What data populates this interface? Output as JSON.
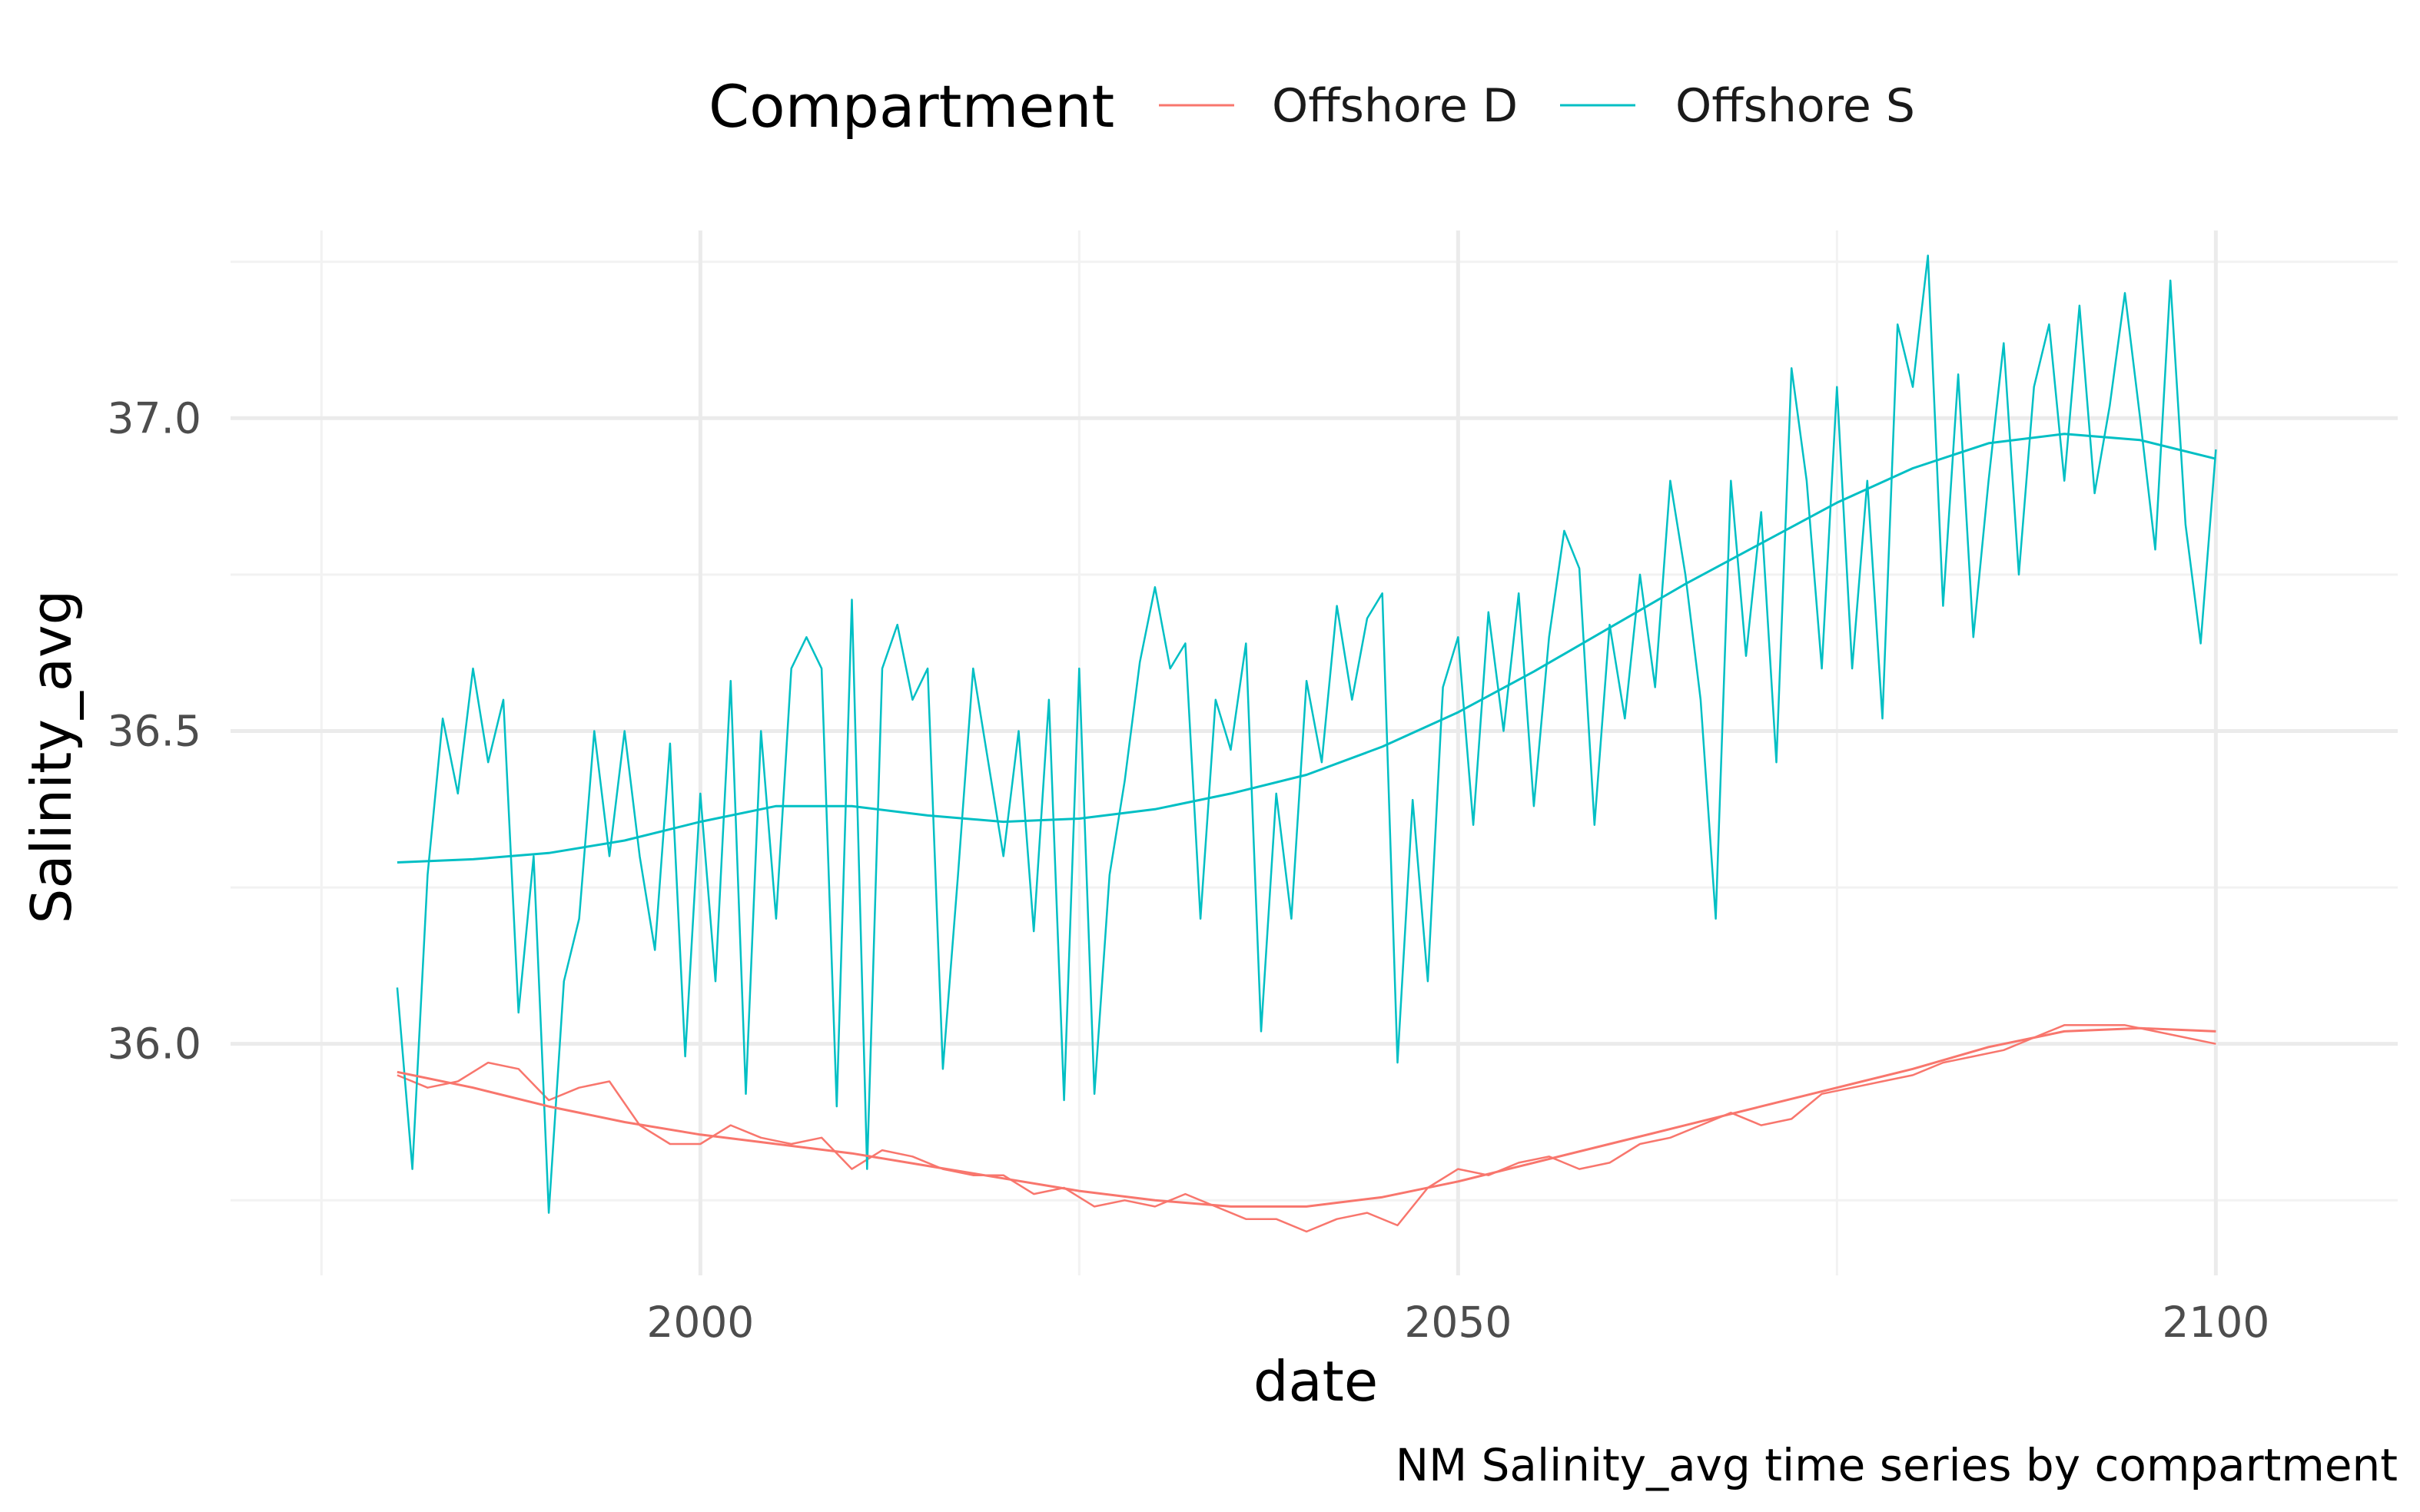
{
  "chart_data": {
    "type": "line",
    "xlabel": "date",
    "ylabel": "Salinity_avg",
    "caption": "NM Salinity_avg time series by compartment",
    "legend": {
      "title": "Compartment",
      "placement": "top"
    },
    "xlim": [
      1969,
      2112
    ],
    "ylim": [
      35.63,
      37.3
    ],
    "x_ticks": [
      2000,
      2050,
      2100
    ],
    "x_tick_labels": [
      "2000",
      "2050",
      "2100"
    ],
    "y_ticks": [
      36.0,
      36.5,
      37.0
    ],
    "y_tick_labels": [
      "36.0",
      "36.5",
      "37.0"
    ],
    "grid": true,
    "colors": {
      "Offshore D": "#F8766D",
      "Offshore S": "#00BFC4"
    },
    "series": [
      {
        "name": "Offshore D",
        "kind": "observed",
        "x": [
          1980,
          1982,
          1984,
          1986,
          1988,
          1990,
          1992,
          1994,
          1996,
          1998,
          2000,
          2002,
          2004,
          2006,
          2008,
          2010,
          2012,
          2014,
          2016,
          2018,
          2020,
          2022,
          2024,
          2026,
          2028,
          2030,
          2032,
          2034,
          2036,
          2038,
          2040,
          2042,
          2044,
          2046,
          2048,
          2050,
          2052,
          2054,
          2056,
          2058,
          2060,
          2062,
          2064,
          2066,
          2068,
          2070,
          2072,
          2074,
          2076,
          2078,
          2080,
          2082,
          2084,
          2086,
          2088,
          2090,
          2092,
          2094,
          2096,
          2098,
          2100
        ],
        "y": [
          35.95,
          35.93,
          35.94,
          35.97,
          35.96,
          35.91,
          35.93,
          35.94,
          35.87,
          35.84,
          35.84,
          35.87,
          35.85,
          35.84,
          35.85,
          35.8,
          35.83,
          35.82,
          35.8,
          35.79,
          35.79,
          35.76,
          35.77,
          35.74,
          35.75,
          35.74,
          35.76,
          35.74,
          35.72,
          35.72,
          35.7,
          35.72,
          35.73,
          35.71,
          35.77,
          35.8,
          35.79,
          35.81,
          35.82,
          35.8,
          35.81,
          35.84,
          35.85,
          35.87,
          35.89,
          35.87,
          35.88,
          35.92,
          35.93,
          35.94,
          35.95,
          35.97,
          35.98,
          35.99,
          36.01,
          36.03,
          36.03,
          36.03,
          36.02,
          36.01,
          36.0
        ]
      },
      {
        "name": "Offshore S",
        "kind": "observed",
        "x": [
          1980,
          1981,
          1982,
          1983,
          1984,
          1985,
          1986,
          1987,
          1988,
          1989,
          1990,
          1991,
          1992,
          1993,
          1994,
          1995,
          1996,
          1997,
          1998,
          1999,
          2000,
          2001,
          2002,
          2003,
          2004,
          2005,
          2006,
          2007,
          2008,
          2009,
          2010,
          2011,
          2012,
          2013,
          2014,
          2015,
          2016,
          2017,
          2018,
          2019,
          2020,
          2021,
          2022,
          2023,
          2024,
          2025,
          2026,
          2027,
          2028,
          2029,
          2030,
          2031,
          2032,
          2033,
          2034,
          2035,
          2036,
          2037,
          2038,
          2039,
          2040,
          2041,
          2042,
          2043,
          2044,
          2045,
          2046,
          2047,
          2048,
          2049,
          2050,
          2051,
          2052,
          2053,
          2054,
          2055,
          2056,
          2057,
          2058,
          2059,
          2060,
          2061,
          2062,
          2063,
          2064,
          2065,
          2066,
          2067,
          2068,
          2069,
          2070,
          2071,
          2072,
          2073,
          2074,
          2075,
          2076,
          2077,
          2078,
          2079,
          2080,
          2081,
          2082,
          2083,
          2084,
          2085,
          2086,
          2087,
          2088,
          2089,
          2090,
          2091,
          2092,
          2093,
          2094,
          2095,
          2096,
          2097,
          2098,
          2099,
          2100
        ],
        "y": [
          36.09,
          35.8,
          36.27,
          36.52,
          36.4,
          36.6,
          36.45,
          36.55,
          36.05,
          36.3,
          35.73,
          36.1,
          36.2,
          36.5,
          36.3,
          36.5,
          36.3,
          36.15,
          36.48,
          35.98,
          36.4,
          36.1,
          36.58,
          35.92,
          36.5,
          36.2,
          36.6,
          36.65,
          36.6,
          35.9,
          36.71,
          35.8,
          36.6,
          36.67,
          36.55,
          36.6,
          35.96,
          36.27,
          36.6,
          36.45,
          36.3,
          36.5,
          36.18,
          36.55,
          35.91,
          36.6,
          35.92,
          36.27,
          36.42,
          36.61,
          36.73,
          36.6,
          36.64,
          36.2,
          36.55,
          36.47,
          36.64,
          36.02,
          36.4,
          36.2,
          36.58,
          36.45,
          36.7,
          36.55,
          36.68,
          36.72,
          35.97,
          36.39,
          36.1,
          36.57,
          36.65,
          36.35,
          36.69,
          36.5,
          36.72,
          36.38,
          36.65,
          36.82,
          36.76,
          36.35,
          36.67,
          36.52,
          36.75,
          36.57,
          36.9,
          36.75,
          36.55,
          36.2,
          36.9,
          36.62,
          36.85,
          36.45,
          37.08,
          36.9,
          36.6,
          37.05,
          36.6,
          36.9,
          36.52,
          37.15,
          37.05,
          37.26,
          36.7,
          37.07,
          36.65,
          36.9,
          37.12,
          36.75,
          37.05,
          37.15,
          36.9,
          37.18,
          36.88,
          37.02,
          37.2,
          37.0,
          36.79,
          37.22,
          36.83,
          36.64,
          36.95
        ]
      },
      {
        "name": "Offshore D",
        "kind": "smooth",
        "x": [
          1980,
          1985,
          1990,
          1995,
          2000,
          2005,
          2010,
          2015,
          2020,
          2025,
          2030,
          2035,
          2040,
          2045,
          2050,
          2055,
          2060,
          2065,
          2070,
          2075,
          2080,
          2085,
          2090,
          2095,
          2100
        ],
        "y": [
          35.955,
          35.93,
          35.9,
          35.875,
          35.855,
          35.84,
          35.825,
          35.805,
          35.785,
          35.765,
          35.75,
          35.74,
          35.74,
          35.755,
          35.78,
          35.81,
          35.84,
          35.87,
          35.9,
          35.93,
          35.96,
          35.995,
          36.02,
          36.025,
          36.02
        ]
      },
      {
        "name": "Offshore S",
        "kind": "smooth",
        "x": [
          1980,
          1985,
          1990,
          1995,
          2000,
          2005,
          2010,
          2015,
          2020,
          2025,
          2030,
          2035,
          2040,
          2045,
          2050,
          2055,
          2060,
          2065,
          2070,
          2075,
          2080,
          2085,
          2090,
          2095,
          2100
        ],
        "y": [
          36.29,
          36.295,
          36.305,
          36.325,
          36.355,
          36.38,
          36.38,
          36.365,
          36.355,
          36.36,
          36.375,
          36.4,
          36.43,
          36.475,
          36.53,
          36.595,
          36.665,
          36.735,
          36.8,
          36.865,
          36.92,
          36.96,
          36.975,
          36.965,
          36.935
        ]
      }
    ]
  }
}
